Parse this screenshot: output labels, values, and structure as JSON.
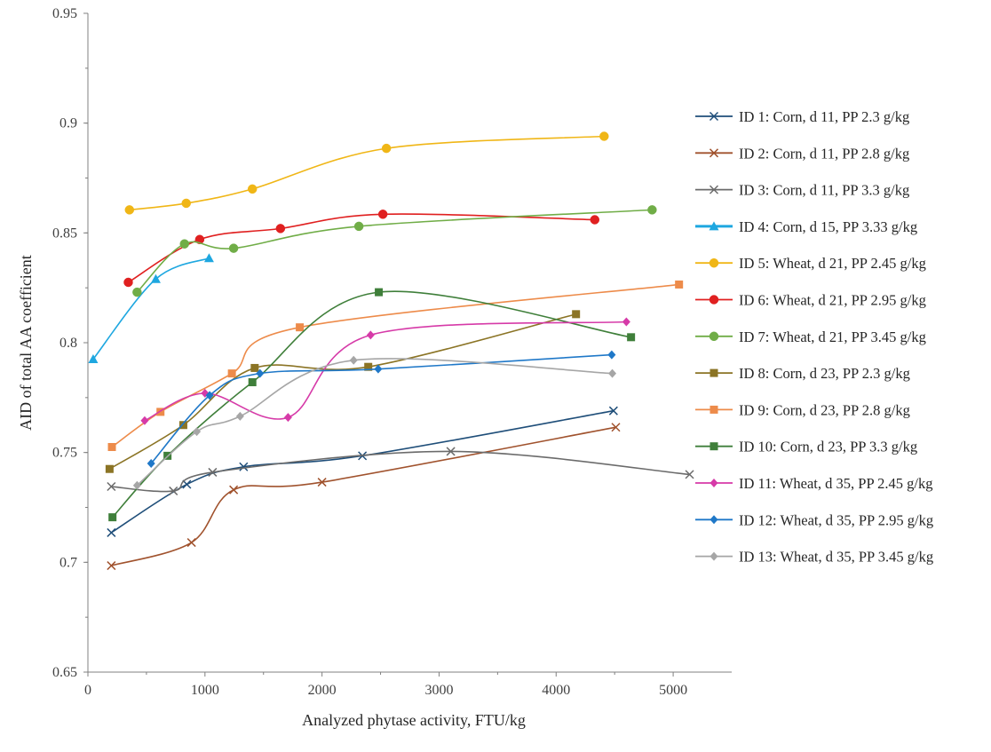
{
  "chart_data": {
    "type": "line",
    "title": "",
    "xlabel": "Analyzed phytase activity, FTU/kg",
    "ylabel": "AID of total AA coefficient",
    "xlim": [
      0,
      5500
    ],
    "ylim": [
      0.65,
      0.95
    ],
    "x_ticks": [
      "0",
      "1000",
      "2000",
      "3000",
      "4000",
      "5000"
    ],
    "y_ticks": [
      "0.65",
      "0.7",
      "0.75",
      "0.8",
      "0.85",
      "0.9",
      "0.95"
    ],
    "grid": false,
    "legend_position": "right",
    "series": [
      {
        "name": "ID 1: Corn, d 11, PP 2.3 g/kg",
        "color": "#1f4e79",
        "marker": "x",
        "points": [
          [
            200,
            0.7135
          ],
          [
            845,
            0.7355
          ],
          [
            1330,
            0.7435
          ],
          [
            2345,
            0.7485
          ],
          [
            4490,
            0.769
          ]
        ]
      },
      {
        "name": "ID 2: Corn, d 11, PP 2.8 g/kg",
        "color": "#a0522d",
        "marker": "x",
        "points": [
          [
            200,
            0.6985
          ],
          [
            885,
            0.709
          ],
          [
            1245,
            0.733
          ],
          [
            2000,
            0.7365
          ],
          [
            4510,
            0.7615
          ]
        ]
      },
      {
        "name": "ID 3: Corn, d 11, PP 3.3 g/kg",
        "color": "#6b6b6b",
        "marker": "x",
        "points": [
          [
            200,
            0.7345
          ],
          [
            730,
            0.7325
          ],
          [
            1065,
            0.741
          ],
          [
            3100,
            0.7505
          ],
          [
            5140,
            0.74
          ]
        ]
      },
      {
        "name": "ID 4: Corn, d 15, PP 3.33 g/kg",
        "color": "#1ea7e0",
        "marker": "triangle",
        "points": [
          [
            45,
            0.7925
          ],
          [
            580,
            0.829
          ],
          [
            1035,
            0.8385
          ]
        ]
      },
      {
        "name": "ID 5: Wheat, d 21, PP 2.45 g/kg",
        "color": "#f0b616",
        "marker": "circle",
        "points": [
          [
            355,
            0.8605
          ],
          [
            840,
            0.8635
          ],
          [
            1405,
            0.87
          ],
          [
            2550,
            0.8885
          ],
          [
            4410,
            0.894
          ]
        ]
      },
      {
        "name": "ID 6: Wheat, d 21, PP 2.95 g/kg",
        "color": "#e02020",
        "marker": "circle",
        "points": [
          [
            345,
            0.8275
          ],
          [
            955,
            0.847
          ],
          [
            1645,
            0.852
          ],
          [
            2520,
            0.8585
          ],
          [
            4330,
            0.856
          ]
        ]
      },
      {
        "name": "ID 7: Wheat, d 21, PP 3.45 g/kg",
        "color": "#70ad47",
        "marker": "circle",
        "points": [
          [
            420,
            0.823
          ],
          [
            825,
            0.845
          ],
          [
            1245,
            0.843
          ],
          [
            2315,
            0.853
          ],
          [
            4820,
            0.8605
          ]
        ]
      },
      {
        "name": "ID 8: Corn, d 23, PP 2.3 g/kg",
        "color": "#8b7425",
        "marker": "square",
        "points": [
          [
            185,
            0.7425
          ],
          [
            815,
            0.7625
          ],
          [
            1425,
            0.7885
          ],
          [
            2395,
            0.789
          ],
          [
            4170,
            0.813
          ]
        ]
      },
      {
        "name": "ID 9: Corn, d 23, PP 2.8 g/kg",
        "color": "#ed8b4a",
        "marker": "square",
        "points": [
          [
            205,
            0.7525
          ],
          [
            620,
            0.7685
          ],
          [
            1230,
            0.786
          ],
          [
            1810,
            0.807
          ],
          [
            5050,
            0.8265
          ]
        ]
      },
      {
        "name": "ID 10: Corn, d 23, PP 3.3 g/kg",
        "color": "#3f7f3a",
        "marker": "square",
        "points": [
          [
            210,
            0.7205
          ],
          [
            680,
            0.7485
          ],
          [
            1405,
            0.782
          ],
          [
            2485,
            0.823
          ],
          [
            4640,
            0.8025
          ]
        ]
      },
      {
        "name": "ID 11: Wheat, d 35, PP 2.45 g/kg",
        "color": "#d63aa8",
        "marker": "diamond",
        "points": [
          [
            485,
            0.7645
          ],
          [
            1000,
            0.777
          ],
          [
            1710,
            0.766
          ],
          [
            2415,
            0.8035
          ],
          [
            4600,
            0.8095
          ]
        ]
      },
      {
        "name": "ID 12: Wheat, d 35, PP 2.95 g/kg",
        "color": "#1f78c8",
        "marker": "diamond",
        "points": [
          [
            540,
            0.745
          ],
          [
            1040,
            0.776
          ],
          [
            1470,
            0.786
          ],
          [
            2480,
            0.788
          ],
          [
            4475,
            0.7945
          ]
        ]
      },
      {
        "name": "ID 13: Wheat, d 35, PP 3.45 g/kg",
        "color": "#a6a6a6",
        "marker": "diamond",
        "points": [
          [
            420,
            0.735
          ],
          [
            930,
            0.7595
          ],
          [
            1300,
            0.7665
          ],
          [
            2270,
            0.792
          ],
          [
            4480,
            0.786
          ]
        ]
      }
    ]
  }
}
